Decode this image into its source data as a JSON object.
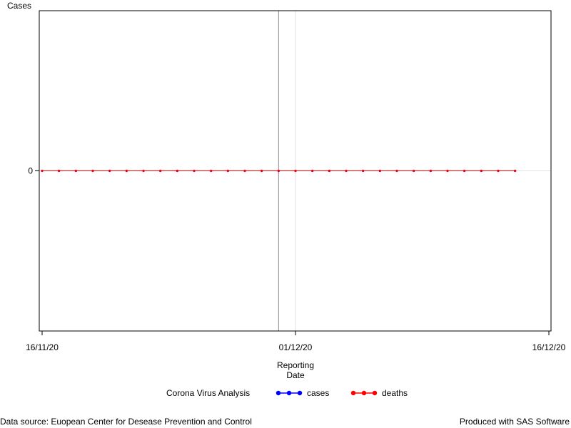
{
  "chart_data": {
    "type": "line",
    "ylabel": "Cases",
    "xlabel_lines": [
      "Reporting",
      "Date"
    ],
    "x_ticks": [
      "16/11/20",
      "01/12/20",
      "16/12/20"
    ],
    "xlim": [
      "2020-11-16",
      "2020-12-16"
    ],
    "y_ticks": [
      0
    ],
    "ylim": [
      -1,
      1
    ],
    "reference_line_x": "2020-11-30",
    "gridlines_x": [
      "2020-12-01"
    ],
    "gridlines_y": [
      0
    ],
    "x": [
      "2020-11-16",
      "2020-11-17",
      "2020-11-18",
      "2020-11-19",
      "2020-11-20",
      "2020-11-21",
      "2020-11-22",
      "2020-11-23",
      "2020-11-24",
      "2020-11-25",
      "2020-11-26",
      "2020-11-27",
      "2020-11-28",
      "2020-11-29",
      "2020-11-30",
      "2020-12-01",
      "2020-12-02",
      "2020-12-03",
      "2020-12-04",
      "2020-12-05",
      "2020-12-06",
      "2020-12-07",
      "2020-12-08",
      "2020-12-09",
      "2020-12-10",
      "2020-12-11",
      "2020-12-12",
      "2020-12-13",
      "2020-12-14"
    ],
    "series": [
      {
        "name": "cases",
        "color": "#0000ff",
        "values": [
          0,
          0,
          0,
          0,
          0,
          0,
          0,
          0,
          0,
          0,
          0,
          0,
          0,
          0,
          0,
          0,
          0,
          0,
          0,
          0,
          0,
          0,
          0,
          0,
          0,
          0,
          0,
          0,
          0
        ]
      },
      {
        "name": "deaths",
        "color": "#ff0000",
        "values": [
          0,
          0,
          0,
          0,
          0,
          0,
          0,
          0,
          0,
          0,
          0,
          0,
          0,
          0,
          0,
          0,
          0,
          0,
          0,
          0,
          0,
          0,
          0,
          0,
          0,
          0,
          0,
          0,
          0
        ]
      }
    ],
    "legend": {
      "title": "Corona Virus Analysis",
      "position": "bottom"
    }
  },
  "footer": {
    "source": "Data source: Euopean Center for Desease Prevention and Control",
    "produced": "Produced with SAS Software"
  }
}
